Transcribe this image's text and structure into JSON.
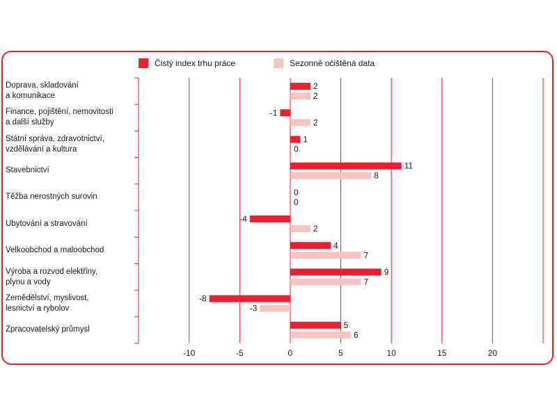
{
  "chart_data": {
    "type": "bar",
    "orientation": "horizontal",
    "categories": [
      [
        "Doprava, skladování",
        "a komunikace"
      ],
      [
        "Finance, pojištění, nemovitosti",
        "a další služby"
      ],
      [
        "Státní správa, zdravotnictví,",
        "vzdělávání a kultura"
      ],
      [
        "Stavebnictví"
      ],
      [
        "Těžba nerostných surovin"
      ],
      [
        "Ubytování a stravování"
      ],
      [
        "Velkoobchod a maloobchod"
      ],
      [
        "Výroba a rozvod elektřiny,",
        "plynu a vody"
      ],
      [
        "Zemědělství, myslivost,",
        "lesnictví a rybolov"
      ],
      [
        "Zpracovatelský průmysl"
      ]
    ],
    "series": [
      {
        "name": "Čistý index trhu práce",
        "color": "#e8202f",
        "values": [
          2,
          -1,
          1,
          11,
          0,
          -4,
          4,
          9,
          -8,
          5
        ]
      },
      {
        "name": "Sezonně očištěná data",
        "color": "#f9c4c0",
        "values": [
          2,
          2,
          0,
          8,
          0,
          2,
          7,
          7,
          -3,
          6
        ]
      }
    ],
    "xlim": [
      -15,
      25
    ],
    "xticks": [
      -10,
      -5,
      0,
      5,
      10,
      15,
      20
    ],
    "grid": true,
    "gridColor": "#e8202f",
    "legend_position": "top"
  }
}
